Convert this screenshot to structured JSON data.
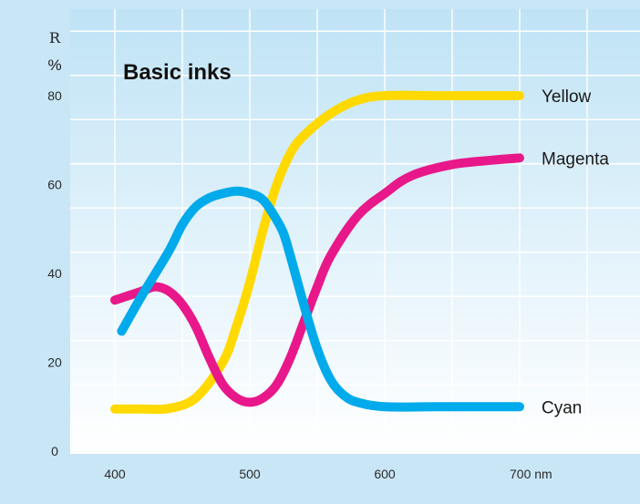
{
  "chart_data": {
    "type": "line",
    "title": "Basic inks",
    "ylabel": "R",
    "yunit": "%",
    "xunit": "nm",
    "xlim": [
      400,
      700
    ],
    "ylim": [
      0,
      80
    ],
    "x_ticks": [
      {
        "value": 400,
        "label": "400"
      },
      {
        "value": 500,
        "label": "500"
      },
      {
        "value": 600,
        "label": "600"
      },
      {
        "value": 700,
        "label": "700 nm"
      }
    ],
    "y_ticks": [
      {
        "value": 0,
        "label": "0"
      },
      {
        "value": 20,
        "label": "20"
      },
      {
        "value": 40,
        "label": "40"
      },
      {
        "value": 60,
        "label": "60"
      },
      {
        "value": 80,
        "label": "80"
      }
    ],
    "grid": true,
    "legend": "labels at line ends",
    "series": [
      {
        "name": "Yellow",
        "color": "#ffd900",
        "x": [
          400,
          420,
          440,
          460,
          480,
          490,
          500,
          510,
          520,
          530,
          540,
          560,
          580,
          600,
          640,
          700
        ],
        "y": [
          9.5,
          9.5,
          9.6,
          12,
          20,
          28,
          38,
          50,
          60,
          67,
          71,
          76,
          79,
          80,
          80,
          80
        ]
      },
      {
        "name": "Magenta",
        "color": "#e8188a",
        "x": [
          400,
          410,
          420,
          430,
          440,
          450,
          460,
          470,
          480,
          490,
          500,
          510,
          520,
          530,
          540,
          550,
          560,
          580,
          600,
          620,
          650,
          680,
          700
        ],
        "y": [
          34,
          35,
          36,
          37,
          36,
          33,
          28,
          21,
          15,
          12,
          11,
          12,
          15,
          21,
          29,
          37,
          44,
          53,
          58,
          62,
          64.5,
          65.5,
          66
        ]
      },
      {
        "name": "Cyan",
        "color": "#00aaeb",
        "x": [
          405,
          420,
          440,
          450,
          460,
          470,
          480,
          490,
          500,
          510,
          520,
          525,
          530,
          540,
          550,
          560,
          570,
          580,
          600,
          640,
          700
        ],
        "y": [
          27,
          35,
          45,
          51,
          55,
          57,
          58,
          58.5,
          58,
          56.5,
          52,
          49,
          44,
          33,
          23,
          16,
          12.5,
          11,
          10,
          10,
          10
        ]
      }
    ]
  }
}
